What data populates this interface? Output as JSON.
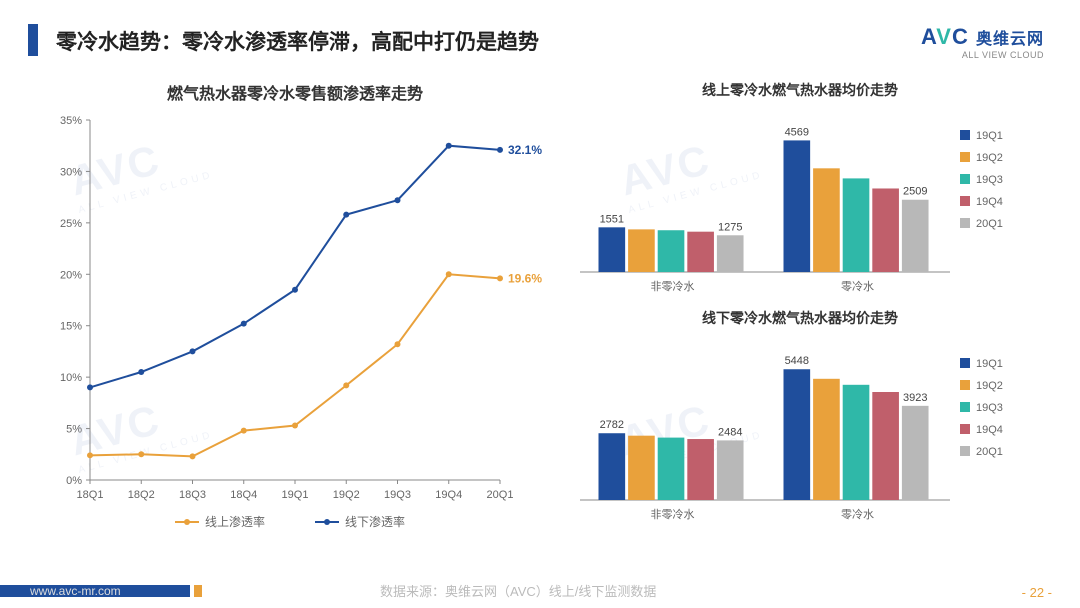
{
  "header": {
    "title": "零冷水趋势：零冷水渗透率停滞，高配中打仍是趋势",
    "logo_avc": "AVC",
    "logo_cn": "奥维云网",
    "logo_en": "ALL VIEW CLOUD",
    "logo_color_a": "#1f4e9c",
    "logo_color_v": "#2fb8a8"
  },
  "line_chart": {
    "type": "line",
    "title": "燃气热水器零冷水零售额渗透率走势",
    "categories": [
      "18Q1",
      "18Q2",
      "18Q3",
      "18Q4",
      "19Q1",
      "19Q2",
      "19Q3",
      "19Q4",
      "20Q1"
    ],
    "series": [
      {
        "name": "线上渗透率",
        "color": "#e9a13b",
        "values": [
          2.4,
          2.5,
          2.3,
          4.8,
          5.3,
          9.2,
          13.2,
          20.0,
          19.6
        ],
        "end_label": "19.6%"
      },
      {
        "name": "线下渗透率",
        "color": "#1f4e9c",
        "values": [
          9.0,
          10.5,
          12.5,
          15.2,
          18.5,
          25.8,
          27.2,
          32.5,
          32.1
        ],
        "end_label": "32.1%"
      }
    ],
    "ylim": [
      0,
      35
    ],
    "ytick_step": 5,
    "y_suffix": "%",
    "axis_color": "#888",
    "grid_color": "#e0e0e0",
    "tick_fontsize": 11,
    "title_fontsize": 16,
    "marker": "circle",
    "marker_size": 3,
    "line_width": 2,
    "background": "#ffffff"
  },
  "bar_top": {
    "type": "grouped-bar",
    "title": "线上零冷水燃气热水器均价走势",
    "groups": [
      "非零冷水",
      "零冷水"
    ],
    "series_labels": [
      "19Q1",
      "19Q2",
      "19Q3",
      "19Q4",
      "20Q1"
    ],
    "series_colors": [
      "#1f4e9c",
      "#e9a13b",
      "#2fb8a8",
      "#c05f6b",
      "#b8b8b8"
    ],
    "values": [
      [
        1551,
        1480,
        1450,
        1400,
        1275
      ],
      [
        4569,
        3600,
        3250,
        2900,
        2509
      ]
    ],
    "value_labels": [
      {
        "text": "1551",
        "group": 0,
        "bar": 0
      },
      {
        "text": "1275",
        "group": 0,
        "bar": 4
      },
      {
        "text": "4569",
        "group": 1,
        "bar": 0
      },
      {
        "text": "2509",
        "group": 1,
        "bar": 4
      }
    ],
    "ymax": 5000,
    "bar_width": 0.16,
    "axis_color": "#888",
    "tick_fontsize": 11,
    "title_fontsize": 14,
    "background": "#ffffff"
  },
  "bar_bottom": {
    "type": "grouped-bar",
    "title": "线下零冷水燃气热水器均价走势",
    "groups": [
      "非零冷水",
      "零冷水"
    ],
    "series_labels": [
      "19Q1",
      "19Q2",
      "19Q3",
      "19Q4",
      "20Q1"
    ],
    "series_colors": [
      "#1f4e9c",
      "#e9a13b",
      "#2fb8a8",
      "#c05f6b",
      "#b8b8b8"
    ],
    "values": [
      [
        2782,
        2680,
        2600,
        2540,
        2484
      ],
      [
        5448,
        5050,
        4800,
        4500,
        3923
      ]
    ],
    "value_labels": [
      {
        "text": "2782",
        "group": 0,
        "bar": 0
      },
      {
        "text": "2484",
        "group": 0,
        "bar": 4
      },
      {
        "text": "5448",
        "group": 1,
        "bar": 0
      },
      {
        "text": "3923",
        "group": 1,
        "bar": 4
      }
    ],
    "ymax": 6000,
    "bar_width": 0.16,
    "axis_color": "#888",
    "tick_fontsize": 11,
    "title_fontsize": 14,
    "background": "#ffffff"
  },
  "legend": {
    "items": [
      "19Q1",
      "19Q2",
      "19Q3",
      "19Q4",
      "20Q1"
    ],
    "colors": [
      "#1f4e9c",
      "#e9a13b",
      "#2fb8a8",
      "#c05f6b",
      "#b8b8b8"
    ],
    "fontsize": 11
  },
  "footer": {
    "url": "www.avc-mr.com",
    "source": "数据来源：奥维云网（AVC）线上/线下监测数据",
    "page": "- 22 -",
    "bar_color": "#1f4e9c",
    "accent_color": "#e9a13b"
  },
  "watermark": {
    "text": "AVC",
    "sub": "ALL VIEW CLOUD"
  }
}
